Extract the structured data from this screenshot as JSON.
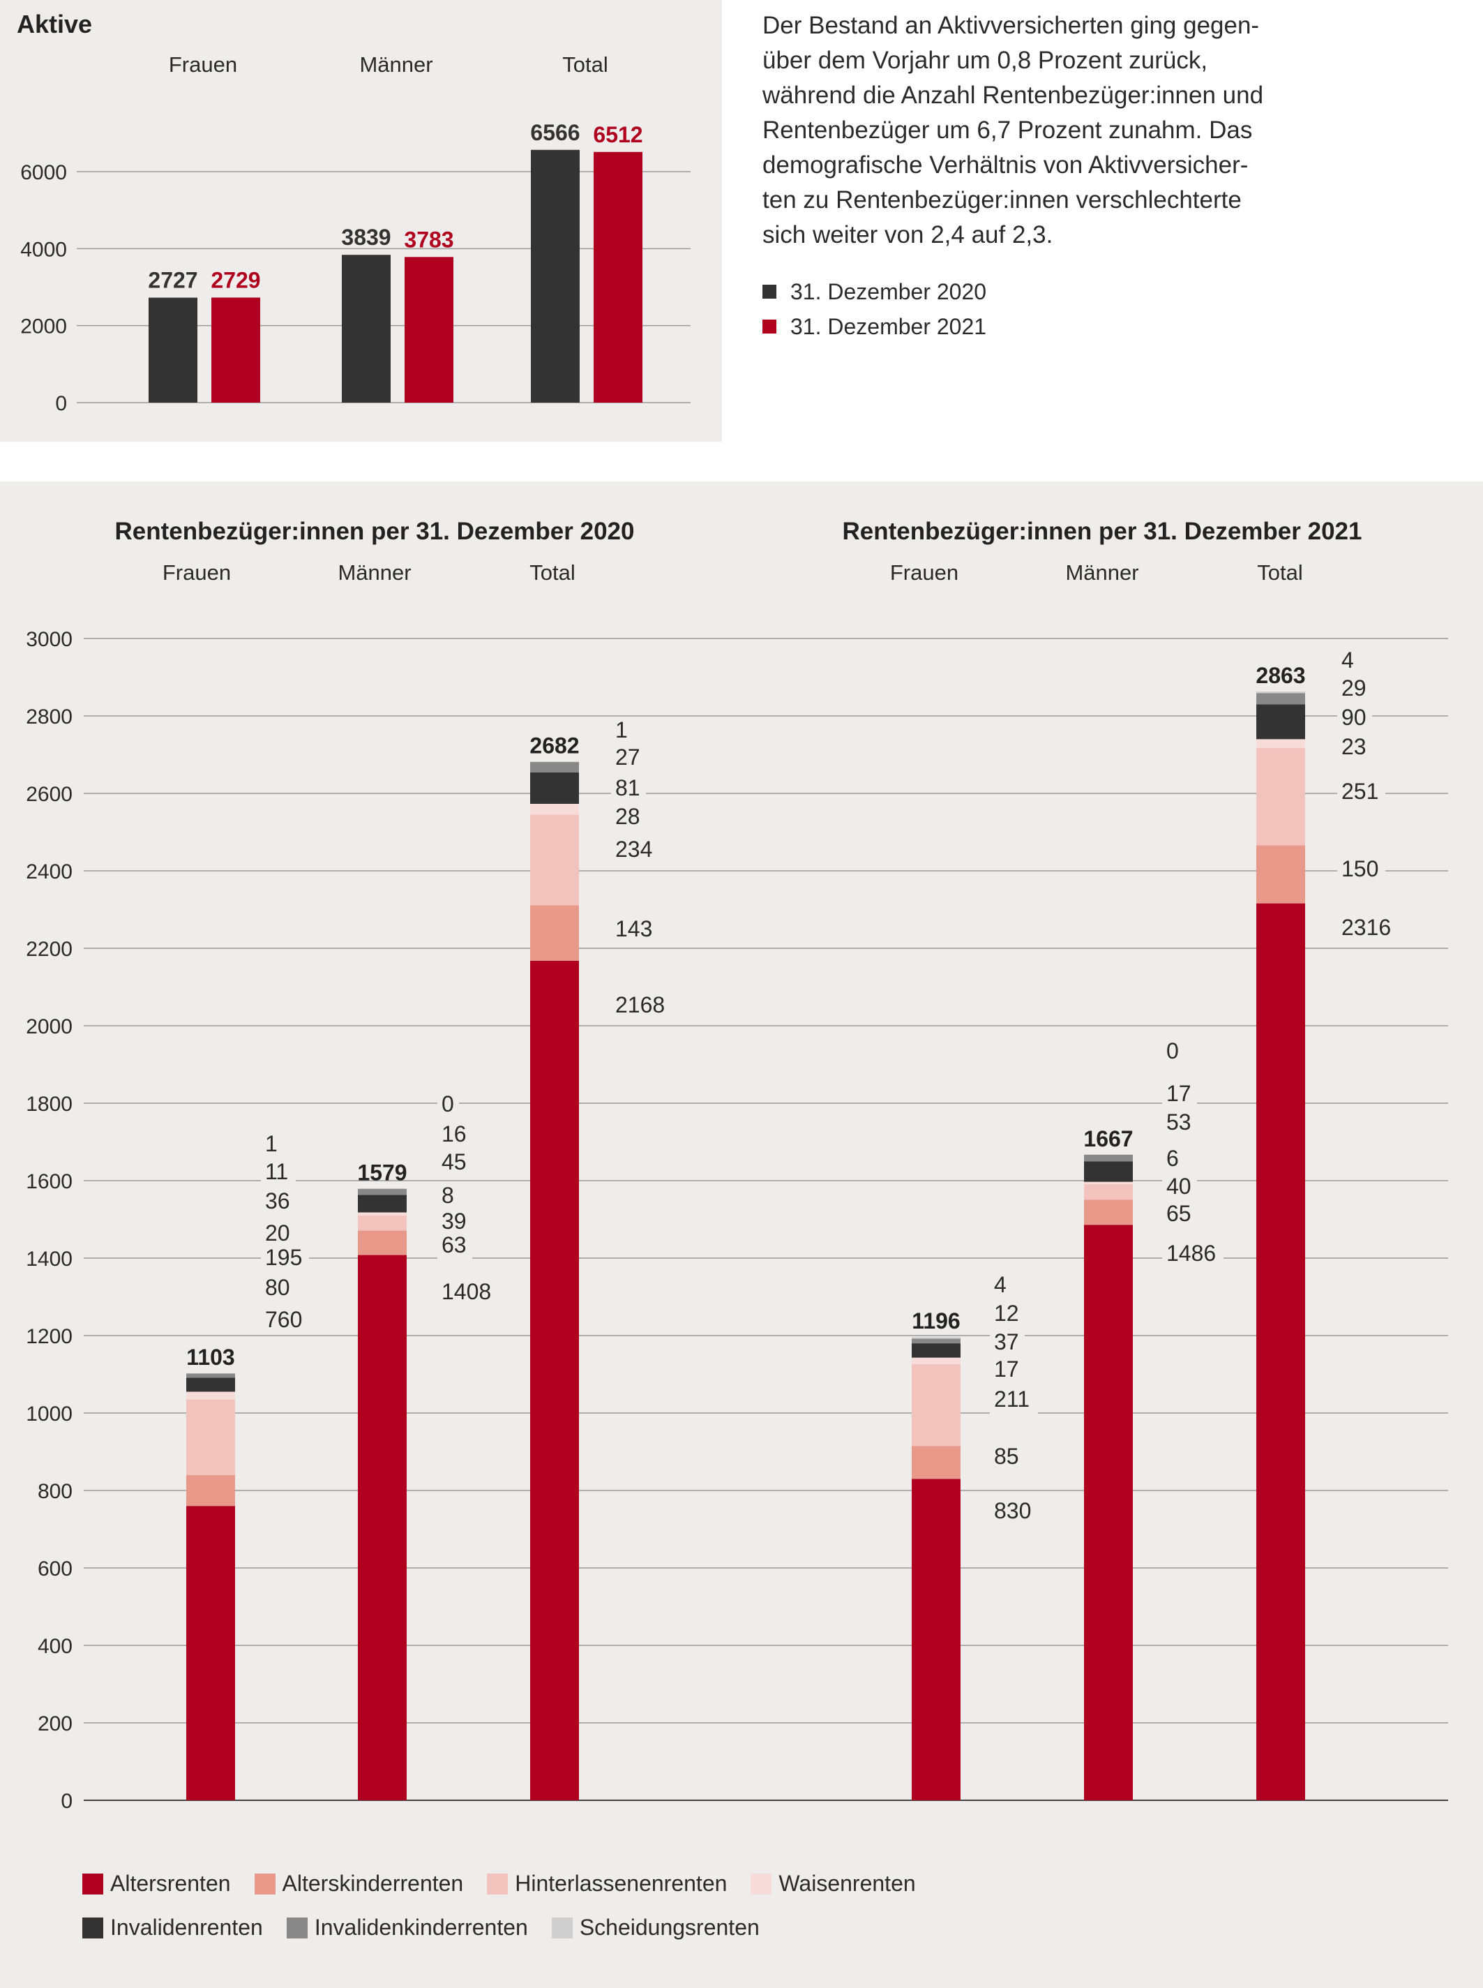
{
  "colors": {
    "y2020": "#333333",
    "y2021": "#b00020",
    "Altersrenten": "#b00020",
    "Alterskinderrenten": "#e8998a",
    "Hinterlassenenrenten": "#f2c2bc",
    "Waisenrenten": "#f8dcd9",
    "Invalidenrenten": "#333333",
    "Invalidenkinderrenten": "#888888",
    "Scheidungsrenten": "#cfcfcf"
  },
  "description": [
    "Der Bestand an Aktivversicherten ging gegen-",
    "über dem Vorjahr um 0,8 Prozent zurück,",
    "während die Anzahl Rentenbezüger:innen und",
    "Rentenbezüger um 6,7 Prozent zunahm. Das",
    "demografische Verhältnis von Aktivversicher-",
    "ten zu Rentenbezüger:innen verschlechterte",
    "sich weiter von 2,4 auf 2,3."
  ],
  "legend_top": [
    {
      "label": "31. Dezember 2020",
      "color": "#333333"
    },
    {
      "label": "31. Dezember 2021",
      "color": "#b00020"
    }
  ],
  "legend_bottom": [
    [
      {
        "label": "Altersrenten",
        "color": "#b00020"
      },
      {
        "label": "Alterskinderrenten",
        "color": "#e8998a"
      },
      {
        "label": "Hinterlassenenrenten",
        "color": "#f2c2bc"
      },
      {
        "label": "Waisenrenten",
        "color": "#f8dcd9"
      }
    ],
    [
      {
        "label": "Invalidenrenten",
        "color": "#333333"
      },
      {
        "label": "Invalidenkinderrenten",
        "color": "#888888"
      },
      {
        "label": "Scheidungsrenten",
        "color": "#cfcfcf"
      }
    ]
  ],
  "chart_data": [
    {
      "type": "bar",
      "title": "Aktive",
      "categories": [
        "Frauen",
        "Männer",
        "Total"
      ],
      "series": [
        {
          "name": "31. Dezember 2020",
          "values": [
            2727,
            3839,
            6566
          ]
        },
        {
          "name": "31. Dezember 2021",
          "values": [
            2729,
            3783,
            6512
          ]
        }
      ],
      "yticks": [
        "0",
        "2000",
        "4000",
        "6000"
      ],
      "ylim": [
        0,
        7000
      ],
      "grid": true
    },
    {
      "type": "bar",
      "stacked": true,
      "titles": [
        "Rentenbezüger:innen per 31. Dezember 2020",
        "Rentenbezüger:innen per 31. Dezember 2021"
      ],
      "categories": [
        "Frauen",
        "Männer",
        "Total"
      ],
      "ylim": [
        0,
        3000
      ],
      "yticks": [
        "0",
        "200",
        "400",
        "600",
        "800",
        "1000",
        "1200",
        "1400",
        "1600",
        "1800",
        "2000",
        "2200",
        "2400",
        "2600",
        "2800",
        "3000"
      ],
      "grid": true,
      "segment_order": [
        "Altersrenten",
        "Alterskinderrenten",
        "Hinterlassenenrenten",
        "Waisenrenten",
        "Invalidenrenten",
        "Invalidenkinderrenten",
        "Scheidungsrenten"
      ],
      "groups": [
        {
          "year": "2020",
          "bars": [
            {
              "category": "Frauen",
              "total": 1103,
              "segments": [
                760,
                80,
                195,
                20,
                36,
                11,
                1
              ]
            },
            {
              "category": "Männer",
              "total": 1579,
              "segments": [
                1408,
                63,
                39,
                8,
                45,
                16,
                0
              ]
            },
            {
              "category": "Total",
              "total": 2682,
              "segments": [
                2168,
                143,
                234,
                28,
                81,
                27,
                1
              ]
            }
          ]
        },
        {
          "year": "2021",
          "bars": [
            {
              "category": "Frauen",
              "total": 1196,
              "segments": [
                830,
                85,
                211,
                17,
                37,
                12,
                4
              ]
            },
            {
              "category": "Männer",
              "total": 1667,
              "segments": [
                1486,
                65,
                40,
                6,
                53,
                17,
                0
              ]
            },
            {
              "category": "Total",
              "total": 2863,
              "segments": [
                2316,
                150,
                251,
                23,
                90,
                29,
                4
              ]
            }
          ]
        }
      ]
    }
  ]
}
